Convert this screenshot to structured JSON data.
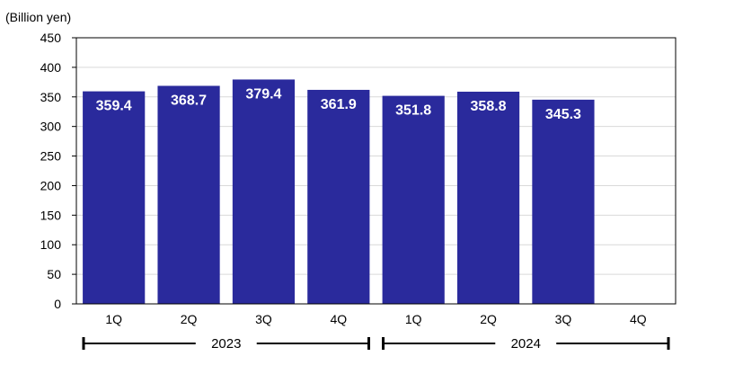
{
  "chart_data": {
    "type": "bar",
    "ylabel": "(Billion yen)",
    "ylim": [
      0,
      450
    ],
    "yticks": [
      0,
      50,
      100,
      150,
      200,
      250,
      300,
      350,
      400,
      450
    ],
    "grid": true,
    "categories": [
      "1Q",
      "2Q",
      "3Q",
      "4Q",
      "1Q",
      "2Q",
      "3Q",
      "4Q"
    ],
    "values": [
      359.4,
      368.7,
      379.4,
      361.9,
      351.8,
      358.8,
      345.3,
      null
    ],
    "data_labels": [
      "359.4",
      "368.7",
      "379.4",
      "361.9",
      "351.8",
      "358.8",
      "345.3",
      ""
    ],
    "groups": [
      {
        "label": "2023",
        "categories": [
          "1Q",
          "2Q",
          "3Q",
          "4Q"
        ]
      },
      {
        "label": "2024",
        "categories": [
          "1Q",
          "2Q",
          "3Q",
          "4Q"
        ]
      }
    ],
    "colors": {
      "bar": "#2a2a9c",
      "grid": "#d9d9d9",
      "axis": "#000000"
    }
  }
}
